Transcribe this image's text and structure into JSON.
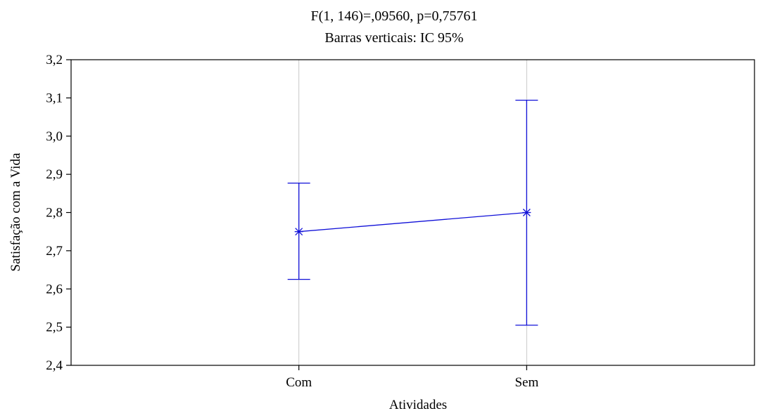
{
  "chart_data": {
    "type": "line",
    "title": "",
    "subtitle_lines": [
      "F(1, 146)=,09560, p=0,75761",
      "Barras verticais: IC 95%"
    ],
    "xlabel": "Atividades",
    "ylabel": "Satisfação com a Vida",
    "categories": [
      "Com",
      "Sem"
    ],
    "series": [
      {
        "values": [
          2.75,
          2.8
        ],
        "ci_lower": [
          2.625,
          2.505
        ],
        "ci_upper": [
          2.877,
          3.094
        ]
      }
    ],
    "yticks": [
      "2,4",
      "2,5",
      "2,6",
      "2,7",
      "2,8",
      "2,9",
      "3,0",
      "3,1",
      "3,2"
    ],
    "ylim": [
      2.4,
      3.2
    ],
    "grid": true,
    "legend": "none",
    "colors": {
      "series": "#1010d8",
      "grid": "#c8c8c8",
      "axis": "#000000"
    }
  }
}
